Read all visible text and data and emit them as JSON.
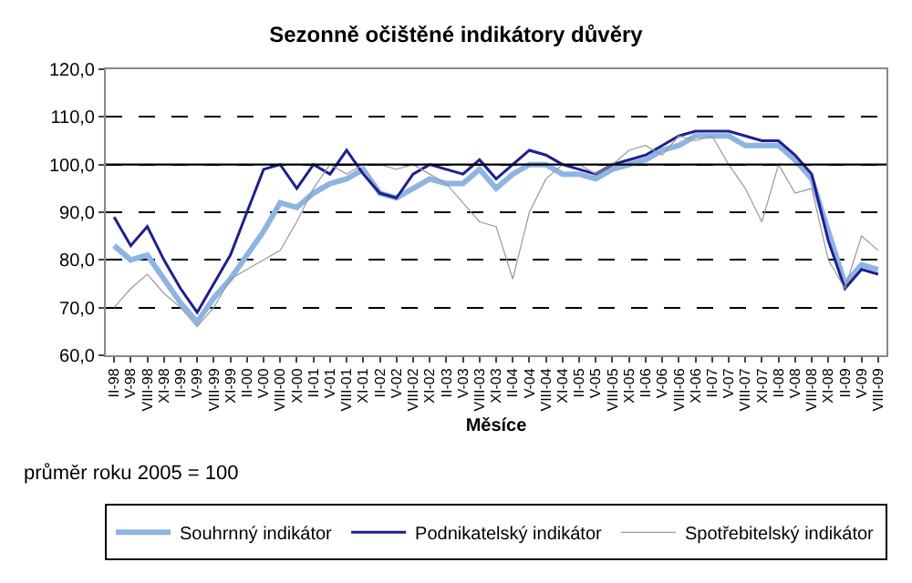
{
  "chart_data": {
    "type": "line",
    "title": "Sezonně očištěné indikátory důvěry",
    "xlabel": "Měsíce",
    "categories": [
      "II-98",
      "V-98",
      "VIII-98",
      "XI-98",
      "II-99",
      "V-99",
      "VIII-99",
      "XI-99",
      "II-00",
      "V-00",
      "VIII-00",
      "XI-00",
      "II-01",
      "V-01",
      "VIII-01",
      "XI-01",
      "II-02",
      "V-02",
      "VIII-02",
      "XI-02",
      "II-03",
      "V-03",
      "VIII-03",
      "XI-03",
      "II-04",
      "V-04",
      "VIII-04",
      "XI-04",
      "II-05",
      "V-05",
      "VIII-05",
      "XI-05",
      "II-06",
      "V-06",
      "VIII-06",
      "XI-06",
      "II-07",
      "V-07",
      "VIII-07",
      "XI-07",
      "II-08",
      "V-08",
      "VIII-08",
      "XI-08",
      "II-09",
      "V-09",
      "VIII-09"
    ],
    "series": [
      {
        "name": "Souhrnný indikátor",
        "color": "#8db4e2",
        "values": [
          83,
          80,
          81,
          76,
          71,
          67,
          72,
          76,
          81,
          86,
          92,
          91,
          94,
          96,
          97,
          99,
          94,
          93,
          95,
          97,
          96,
          96,
          99,
          95,
          98,
          100,
          100,
          98,
          98,
          97,
          99,
          100,
          101,
          103,
          104,
          106,
          106,
          106,
          104,
          104,
          104,
          101,
          97,
          86,
          75,
          79,
          78
        ]
      },
      {
        "name": "Podnikatelský indikátor",
        "color": "#1f1f8f",
        "values": [
          89,
          83,
          87,
          80,
          74,
          69,
          75,
          81,
          90,
          99,
          100,
          95,
          100,
          98,
          103,
          98,
          94,
          93,
          98,
          100,
          99,
          98,
          101,
          97,
          100,
          103,
          102,
          100,
          99,
          98,
          100,
          101,
          102,
          104,
          106,
          107,
          107,
          107,
          106,
          105,
          105,
          102,
          98,
          84,
          74,
          78,
          77
        ]
      },
      {
        "name": "Spotřebitelský indikátor",
        "color": "#999999",
        "values": [
          70,
          74,
          77,
          73,
          70,
          66,
          70,
          76,
          78,
          80,
          82,
          88,
          95,
          100,
          98,
          100,
          100,
          99,
          100,
          98,
          96,
          92,
          88,
          87,
          76,
          90,
          97,
          100,
          100,
          98,
          100,
          103,
          104,
          102,
          106,
          105,
          106,
          100,
          95,
          88,
          100,
          94,
          95,
          80,
          74,
          85,
          82
        ]
      }
    ],
    "ylim": [
      60,
      120
    ],
    "yticks": [
      {
        "value": 60,
        "label": "60,0"
      },
      {
        "value": 70,
        "label": "70,0"
      },
      {
        "value": 80,
        "label": "80,0"
      },
      {
        "value": 90,
        "label": "90,0"
      },
      {
        "value": 100,
        "label": "100,0"
      },
      {
        "value": 110,
        "label": "110,0"
      },
      {
        "value": 120,
        "label": "120,0"
      }
    ],
    "ref_lines": [
      {
        "axis": "y",
        "value": 100,
        "color": "#000000",
        "line_style": "solid"
      }
    ],
    "grid": "y",
    "legend": "bottom",
    "marker": "none",
    "annotations": [
      "průměr roku 2005 = 100"
    ]
  }
}
